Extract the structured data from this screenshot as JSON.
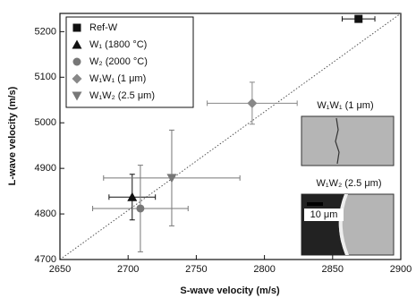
{
  "chart_data": {
    "type": "scatter",
    "xlabel": "S-wave velocity (m/s)",
    "ylabel": "L-wave velocity (m/s)",
    "xlim": [
      2650,
      2900
    ],
    "xticks": [
      2650,
      2700,
      2750,
      2800,
      2850,
      2900
    ],
    "ylim": [
      4700,
      5240
    ],
    "yticks": [
      4700,
      4800,
      4900,
      5000,
      5100,
      5200
    ],
    "legend": "upper left",
    "series": [
      {
        "name": "Ref-W",
        "color": "#111111",
        "marker": "square",
        "x": [
          2869
        ],
        "values": [
          5228
        ],
        "xerr": [
          12
        ]
      },
      {
        "name": "W₁ (1800 °C)",
        "color": "#111111",
        "marker": "triangle-up",
        "x": [
          2703
        ],
        "values": [
          4837
        ],
        "xerr": [
          17
        ],
        "yerr": [
          50
        ]
      },
      {
        "name": "W₂ (2000 °C)",
        "color": "#777777",
        "marker": "circle",
        "x": [
          2709
        ],
        "values": [
          4812
        ],
        "xerr": [
          35
        ],
        "yerr": [
          95
        ]
      },
      {
        "name": "W₁W₁ (1 μm)",
        "color": "#888888",
        "marker": "diamond",
        "x": [
          2791
        ],
        "values": [
          5043
        ],
        "xerr": [
          33
        ],
        "yerr": [
          46
        ]
      },
      {
        "name": "W₁W₂ (2.5 μm)",
        "color": "#777777",
        "marker": "triangle-down",
        "x": [
          2732
        ],
        "values": [
          4879
        ],
        "xerr": [
          50
        ],
        "yerr": [
          105
        ]
      }
    ],
    "annotations": [
      "W₁W₁ (1 μm)",
      "W₁W₂ (2.5 μm)",
      "10 μm"
    ]
  }
}
